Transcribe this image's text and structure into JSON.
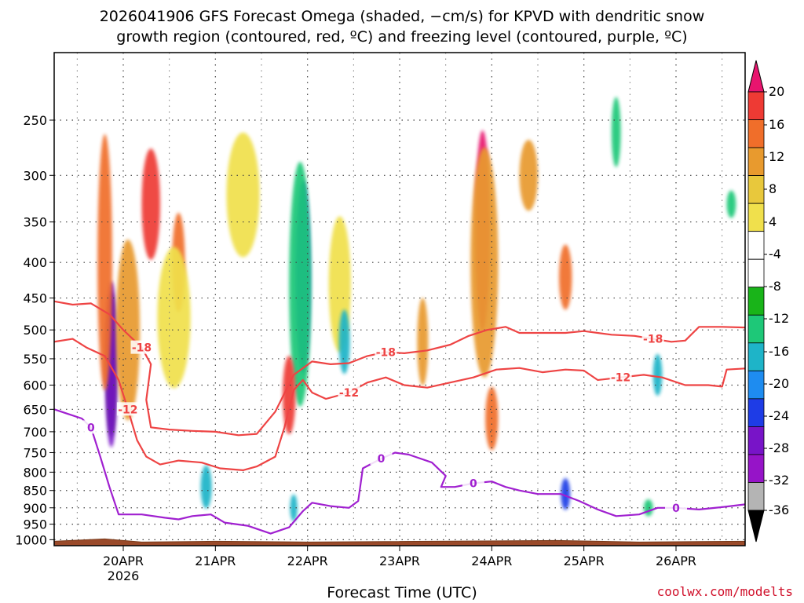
{
  "chart_data": {
    "type": "heatmap",
    "title": "2026041906 GFS Forecast Omega (shaded, −cm/s) for KPVD with dendritic snow\ngrowth region (contoured, red, ºC) and freezing level (contoured, purple, ºC)",
    "xlabel": "Forecast Time (UTC)",
    "ylabel": "",
    "y_ticks": [
      250,
      300,
      350,
      400,
      450,
      500,
      550,
      600,
      650,
      700,
      750,
      800,
      850,
      900,
      950,
      1000
    ],
    "ylim": [
      1020,
      200
    ],
    "x_ticks": [
      "20APR",
      "21APR",
      "22APR",
      "23APR",
      "24APR",
      "25APR",
      "26APR"
    ],
    "x_sublabel": "2026",
    "xlim_days": [
      19.25,
      26.75
    ],
    "colorbar": {
      "labels": [
        "20",
        "16",
        "12",
        "8",
        "4",
        "-4",
        "-8",
        "-12",
        "-16",
        "-20",
        "-24",
        "-28",
        "-32",
        "-36"
      ],
      "colors": [
        "#e8146e",
        "#ee3a34",
        "#f06e2a",
        "#e89a2e",
        "#e8c83c",
        "#f0e04c",
        "#ffffff",
        "#19b419",
        "#1ec878",
        "#1eb4c8",
        "#1e8cf0",
        "#1e3ce6",
        "#7814c8",
        "#9614c8",
        "#b4b4b4",
        "#000000"
      ]
    },
    "series": [
      {
        "name": "-18 C isotherm",
        "label": "-18",
        "color": "#ee4444",
        "points": [
          [
            19.25,
            455
          ],
          [
            19.45,
            460
          ],
          [
            19.65,
            458
          ],
          [
            19.85,
            475
          ],
          [
            20.0,
            500
          ],
          [
            20.2,
            530
          ],
          [
            20.3,
            560
          ],
          [
            20.25,
            630
          ],
          [
            20.3,
            690
          ],
          [
            20.5,
            695
          ],
          [
            20.75,
            698
          ],
          [
            21.0,
            700
          ],
          [
            21.25,
            708
          ],
          [
            21.45,
            705
          ],
          [
            21.65,
            655
          ],
          [
            21.85,
            580
          ],
          [
            22.05,
            555
          ],
          [
            22.25,
            560
          ],
          [
            22.45,
            558
          ],
          [
            22.65,
            545
          ],
          [
            22.85,
            538
          ],
          [
            23.05,
            540
          ],
          [
            23.3,
            535
          ],
          [
            23.55,
            525
          ],
          [
            23.75,
            510
          ],
          [
            23.95,
            500
          ],
          [
            24.15,
            495
          ],
          [
            24.3,
            505
          ],
          [
            24.55,
            505
          ],
          [
            24.8,
            505
          ],
          [
            25.0,
            502
          ],
          [
            25.3,
            508
          ],
          [
            25.55,
            510
          ],
          [
            25.75,
            515
          ],
          [
            25.95,
            520
          ],
          [
            26.1,
            518
          ],
          [
            26.25,
            495
          ],
          [
            26.5,
            495
          ],
          [
            26.75,
            496
          ]
        ]
      },
      {
        "name": "-12 C isotherm",
        "label": "-12",
        "color": "#ee4444",
        "points": [
          [
            19.25,
            520
          ],
          [
            19.45,
            515
          ],
          [
            19.6,
            530
          ],
          [
            19.8,
            545
          ],
          [
            19.95,
            590
          ],
          [
            20.05,
            650
          ],
          [
            20.15,
            720
          ],
          [
            20.25,
            760
          ],
          [
            20.4,
            780
          ],
          [
            20.6,
            770
          ],
          [
            20.85,
            775
          ],
          [
            21.05,
            790
          ],
          [
            21.3,
            795
          ],
          [
            21.45,
            785
          ],
          [
            21.65,
            760
          ],
          [
            21.75,
            690
          ],
          [
            21.85,
            610
          ],
          [
            21.95,
            590
          ],
          [
            22.05,
            615
          ],
          [
            22.2,
            628
          ],
          [
            22.45,
            615
          ],
          [
            22.65,
            595
          ],
          [
            22.85,
            585
          ],
          [
            23.05,
            600
          ],
          [
            23.3,
            605
          ],
          [
            23.55,
            595
          ],
          [
            23.8,
            585
          ],
          [
            24.05,
            570
          ],
          [
            24.3,
            567
          ],
          [
            24.55,
            575
          ],
          [
            24.8,
            570
          ],
          [
            25.0,
            572
          ],
          [
            25.15,
            590
          ],
          [
            25.4,
            585
          ],
          [
            25.65,
            580
          ],
          [
            25.85,
            585
          ],
          [
            26.1,
            600
          ],
          [
            26.35,
            600
          ],
          [
            26.5,
            603
          ],
          [
            26.55,
            570
          ],
          [
            26.75,
            568
          ]
        ]
      },
      {
        "name": "0 C freezing level",
        "label": "0",
        "color": "#a020d0",
        "points": [
          [
            19.25,
            650
          ],
          [
            19.4,
            660
          ],
          [
            19.55,
            670
          ],
          [
            19.65,
            690
          ],
          [
            19.75,
            760
          ],
          [
            19.85,
            840
          ],
          [
            19.95,
            920
          ],
          [
            20.2,
            920
          ],
          [
            20.45,
            930
          ],
          [
            20.6,
            935
          ],
          [
            20.75,
            925
          ],
          [
            20.95,
            920
          ],
          [
            21.1,
            945
          ],
          [
            21.35,
            955
          ],
          [
            21.6,
            980
          ],
          [
            21.8,
            960
          ],
          [
            21.95,
            910
          ],
          [
            22.05,
            885
          ],
          [
            22.25,
            895
          ],
          [
            22.45,
            900
          ],
          [
            22.55,
            880
          ],
          [
            22.6,
            790
          ],
          [
            22.8,
            765
          ],
          [
            22.95,
            750
          ],
          [
            23.1,
            755
          ],
          [
            23.35,
            775
          ],
          [
            23.5,
            810
          ],
          [
            23.45,
            840
          ],
          [
            23.6,
            840
          ],
          [
            23.8,
            830
          ],
          [
            24.0,
            825
          ],
          [
            24.15,
            840
          ],
          [
            24.3,
            850
          ],
          [
            24.5,
            860
          ],
          [
            24.75,
            860
          ],
          [
            24.95,
            880
          ],
          [
            25.15,
            905
          ],
          [
            25.35,
            925
          ],
          [
            25.6,
            920
          ],
          [
            25.8,
            900
          ],
          [
            26.0,
            900
          ],
          [
            26.25,
            905
          ],
          [
            26.5,
            898
          ],
          [
            26.75,
            890
          ]
        ]
      }
    ],
    "omega_cells": [
      {
        "x": 19.87,
        "p": 560,
        "rx": 0.05,
        "rp": 260,
        "v": -36
      },
      {
        "x": 19.87,
        "p": 560,
        "rx": 0.07,
        "rp": 300,
        "v": -24
      },
      {
        "x": 19.8,
        "p": 400,
        "rx": 0.08,
        "rp": 320,
        "v": 12
      },
      {
        "x": 20.05,
        "p": 500,
        "rx": 0.13,
        "rp": 290,
        "v": 8
      },
      {
        "x": 20.3,
        "p": 330,
        "rx": 0.1,
        "rp": 120,
        "v": 16
      },
      {
        "x": 20.6,
        "p": 400,
        "rx": 0.07,
        "rp": 130,
        "v": 12
      },
      {
        "x": 20.55,
        "p": 480,
        "rx": 0.18,
        "rp": 220,
        "v": 4
      },
      {
        "x": 20.9,
        "p": 840,
        "rx": 0.06,
        "rp": 120,
        "v": -12
      },
      {
        "x": 21.3,
        "p": 320,
        "rx": 0.18,
        "rp": 130,
        "v": 4
      },
      {
        "x": 21.95,
        "p": 420,
        "rx": 0.08,
        "rp": 260,
        "v": -20
      },
      {
        "x": 21.92,
        "p": 430,
        "rx": 0.12,
        "rp": 330,
        "v": -8
      },
      {
        "x": 21.8,
        "p": 620,
        "rx": 0.07,
        "rp": 160,
        "v": 16
      },
      {
        "x": 21.85,
        "p": 900,
        "rx": 0.04,
        "rp": 80,
        "v": -12
      },
      {
        "x": 22.35,
        "p": 430,
        "rx": 0.12,
        "rp": 190,
        "v": 4
      },
      {
        "x": 22.4,
        "p": 520,
        "rx": 0.06,
        "rp": 110,
        "v": -12
      },
      {
        "x": 23.25,
        "p": 520,
        "rx": 0.06,
        "rp": 150,
        "v": 8
      },
      {
        "x": 23.9,
        "p": 360,
        "rx": 0.08,
        "rp": 230,
        "v": 20
      },
      {
        "x": 23.92,
        "p": 400,
        "rx": 0.15,
        "rp": 290,
        "v": 8
      },
      {
        "x": 24.0,
        "p": 670,
        "rx": 0.07,
        "rp": 140,
        "v": 12
      },
      {
        "x": 24.4,
        "p": 300,
        "rx": 0.1,
        "rp": 70,
        "v": 8
      },
      {
        "x": 24.8,
        "p": 420,
        "rx": 0.07,
        "rp": 90,
        "v": 12
      },
      {
        "x": 24.8,
        "p": 860,
        "rx": 0.05,
        "rp": 90,
        "v": -20
      },
      {
        "x": 25.35,
        "p": 260,
        "rx": 0.05,
        "rp": 60,
        "v": -8
      },
      {
        "x": 25.8,
        "p": 580,
        "rx": 0.05,
        "rp": 80,
        "v": -12
      },
      {
        "x": 25.7,
        "p": 900,
        "rx": 0.05,
        "rp": 50,
        "v": -8
      },
      {
        "x": 26.6,
        "p": 330,
        "rx": 0.05,
        "rp": 30,
        "v": -8
      }
    ]
  },
  "xlabel": "Forecast Time (UTC)",
  "credit": "coolwx.com/modelts"
}
